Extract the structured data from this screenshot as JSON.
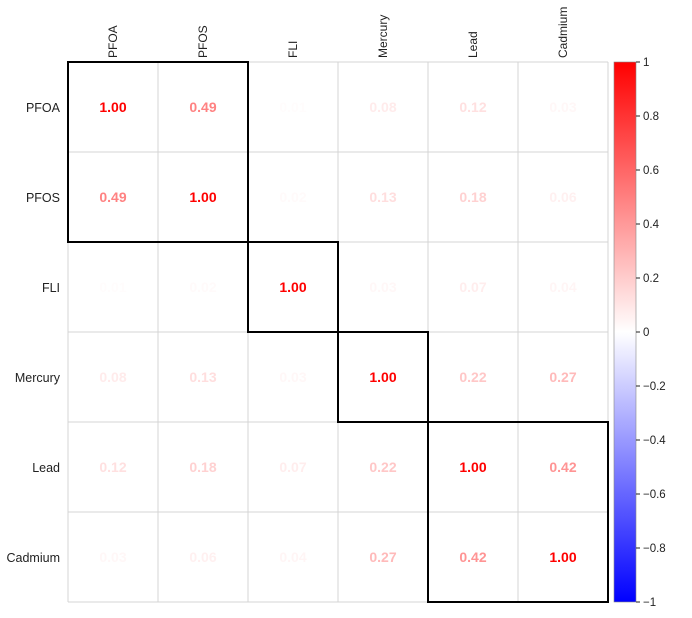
{
  "chart_data": {
    "type": "heatmap",
    "variables": [
      "PFOA",
      "PFOS",
      "FLI",
      "Mercury",
      "Lead",
      "Cadmium"
    ],
    "matrix": [
      [
        1.0,
        0.49,
        0.01,
        0.08,
        0.12,
        0.03
      ],
      [
        0.49,
        1.0,
        0.02,
        0.13,
        0.18,
        0.06
      ],
      [
        0.01,
        0.02,
        1.0,
        0.03,
        0.07,
        0.04
      ],
      [
        0.08,
        0.13,
        0.03,
        1.0,
        0.22,
        0.27
      ],
      [
        0.12,
        0.18,
        0.07,
        0.22,
        1.0,
        0.42
      ],
      [
        0.03,
        0.06,
        0.04,
        0.27,
        0.42,
        1.0
      ]
    ],
    "value_labels": [
      [
        "1.00",
        "0.49",
        "0.01",
        "0.08",
        "0.12",
        "0.03"
      ],
      [
        "0.49",
        "1.00",
        "0.02",
        "0.13",
        "0.18",
        "0.06"
      ],
      [
        "0.01",
        "0.02",
        "1.00",
        "0.03",
        "0.07",
        "0.04"
      ],
      [
        "0.08",
        "0.13",
        "0.03",
        "1.00",
        "0.22",
        "0.27"
      ],
      [
        "0.12",
        "0.18",
        "0.07",
        "0.22",
        "1.00",
        "0.42"
      ],
      [
        "0.03",
        "0.06",
        "0.04",
        "0.27",
        "0.42",
        "1.00"
      ]
    ],
    "clusters": [
      {
        "start": 0,
        "end": 1
      },
      {
        "start": 2,
        "end": 2
      },
      {
        "start": 3,
        "end": 3
      },
      {
        "start": 4,
        "end": 5
      }
    ],
    "colorbar": {
      "range": [
        -1,
        1
      ],
      "ticks": [
        1,
        0.8,
        0.6,
        0.4,
        0.2,
        0,
        -0.2,
        -0.4,
        -0.6,
        -0.8,
        -1
      ],
      "tick_labels": [
        "1",
        "0.8",
        "0.6",
        "0.4",
        "0.2",
        "0",
        "−0.2",
        "−0.4",
        "−0.6",
        "−0.8",
        "−1"
      ],
      "colors": {
        "low": "#0000ff",
        "mid": "#ffffff",
        "high": "#ff0000"
      }
    },
    "grid_color": "#d4d4d4",
    "cluster_box_color": "#000000"
  }
}
